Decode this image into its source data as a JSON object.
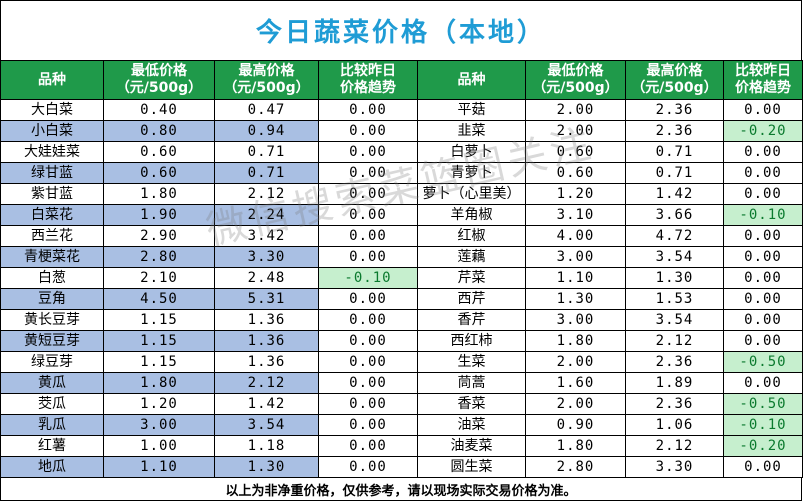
{
  "title": "今日蔬菜价格（本地）",
  "headers": {
    "name": "品种",
    "low": [
      "最低价格",
      "（元/500g）"
    ],
    "high": [
      "最高价格",
      "（元/500g）"
    ],
    "trend": [
      "比较昨日",
      "价格趋势"
    ]
  },
  "rows": [
    {
      "l": {
        "name": "大白菜",
        "low": "0.40",
        "high": "0.47",
        "trend": "0.00"
      },
      "r": {
        "name": "平菇",
        "low": "2.00",
        "high": "2.36",
        "trend": "0.00"
      }
    },
    {
      "l": {
        "name": "小白菜",
        "low": "0.80",
        "high": "0.94",
        "trend": "0.00"
      },
      "r": {
        "name": "韭菜",
        "low": "2.00",
        "high": "2.36",
        "trend": "-0.20"
      }
    },
    {
      "l": {
        "name": "大娃娃菜",
        "low": "0.60",
        "high": "0.71",
        "trend": "0.00"
      },
      "r": {
        "name": "白萝卜",
        "low": "0.60",
        "high": "0.71",
        "trend": "0.00"
      }
    },
    {
      "l": {
        "name": "绿甘蓝",
        "low": "0.60",
        "high": "0.71",
        "trend": "0.00"
      },
      "r": {
        "name": "青萝卜",
        "low": "0.60",
        "high": "0.71",
        "trend": "0.00"
      }
    },
    {
      "l": {
        "name": "紫甘蓝",
        "low": "1.80",
        "high": "2.12",
        "trend": "0.00"
      },
      "r": {
        "name": "萝卜（心里美）",
        "low": "1.20",
        "high": "1.42",
        "trend": "0.00"
      }
    },
    {
      "l": {
        "name": "白菜花",
        "low": "1.90",
        "high": "2.24",
        "trend": "0.00"
      },
      "r": {
        "name": "羊角椒",
        "low": "3.10",
        "high": "3.66",
        "trend": "-0.10"
      }
    },
    {
      "l": {
        "name": "西兰花",
        "low": "2.90",
        "high": "3.42",
        "trend": "0.00"
      },
      "r": {
        "name": "红椒",
        "low": "4.00",
        "high": "4.72",
        "trend": "0.00"
      }
    },
    {
      "l": {
        "name": "青梗菜花",
        "low": "2.80",
        "high": "3.30",
        "trend": "0.00"
      },
      "r": {
        "name": "莲藕",
        "low": "3.00",
        "high": "3.54",
        "trend": "0.00"
      }
    },
    {
      "l": {
        "name": "白葱",
        "low": "2.10",
        "high": "2.48",
        "trend": "-0.10"
      },
      "r": {
        "name": "芹菜",
        "low": "1.10",
        "high": "1.30",
        "trend": "0.00"
      }
    },
    {
      "l": {
        "name": "豆角",
        "low": "4.50",
        "high": "5.31",
        "trend": "0.00"
      },
      "r": {
        "name": "西芹",
        "low": "1.30",
        "high": "1.53",
        "trend": "0.00"
      }
    },
    {
      "l": {
        "name": "黄长豆芽",
        "low": "1.15",
        "high": "1.36",
        "trend": "0.00"
      },
      "r": {
        "name": "香芹",
        "low": "3.00",
        "high": "3.54",
        "trend": "0.00"
      }
    },
    {
      "l": {
        "name": "黄短豆芽",
        "low": "1.15",
        "high": "1.36",
        "trend": "0.00"
      },
      "r": {
        "name": "西红柿",
        "low": "1.80",
        "high": "2.12",
        "trend": "0.00"
      }
    },
    {
      "l": {
        "name": "绿豆芽",
        "low": "1.15",
        "high": "1.36",
        "trend": "0.00"
      },
      "r": {
        "name": "生菜",
        "low": "2.00",
        "high": "2.36",
        "trend": "-0.50"
      }
    },
    {
      "l": {
        "name": "黄瓜",
        "low": "1.80",
        "high": "2.12",
        "trend": "0.00"
      },
      "r": {
        "name": "茼蒿",
        "low": "1.60",
        "high": "1.89",
        "trend": "0.00"
      }
    },
    {
      "l": {
        "name": "茭瓜",
        "low": "1.20",
        "high": "1.42",
        "trend": "0.00"
      },
      "r": {
        "name": "香菜",
        "low": "2.00",
        "high": "2.36",
        "trend": "-0.50"
      }
    },
    {
      "l": {
        "name": "乳瓜",
        "low": "3.00",
        "high": "3.54",
        "trend": "0.00"
      },
      "r": {
        "name": "油菜",
        "low": "0.90",
        "high": "1.06",
        "trend": "-0.10"
      }
    },
    {
      "l": {
        "name": "红薯",
        "low": "1.00",
        "high": "1.18",
        "trend": "0.00"
      },
      "r": {
        "name": "油麦菜",
        "low": "1.80",
        "high": "2.12",
        "trend": "-0.20"
      }
    },
    {
      "l": {
        "name": "地瓜",
        "low": "1.10",
        "high": "1.30",
        "trend": "0.00"
      },
      "r": {
        "name": "圆生菜",
        "low": "2.80",
        "high": "3.30",
        "trend": "0.00"
      }
    }
  ],
  "footer": "以上为非净重价格，仅供参考，请以现场实际交易价格为准。",
  "watermark": "微信搜索菜篮圈关注",
  "colors": {
    "title": "#1f9cd5",
    "header_bg": "#1f9a4a",
    "stripe": "#a9bfe3",
    "decrease_bg": "#c6efce",
    "decrease_text": "#0b7a2e"
  }
}
